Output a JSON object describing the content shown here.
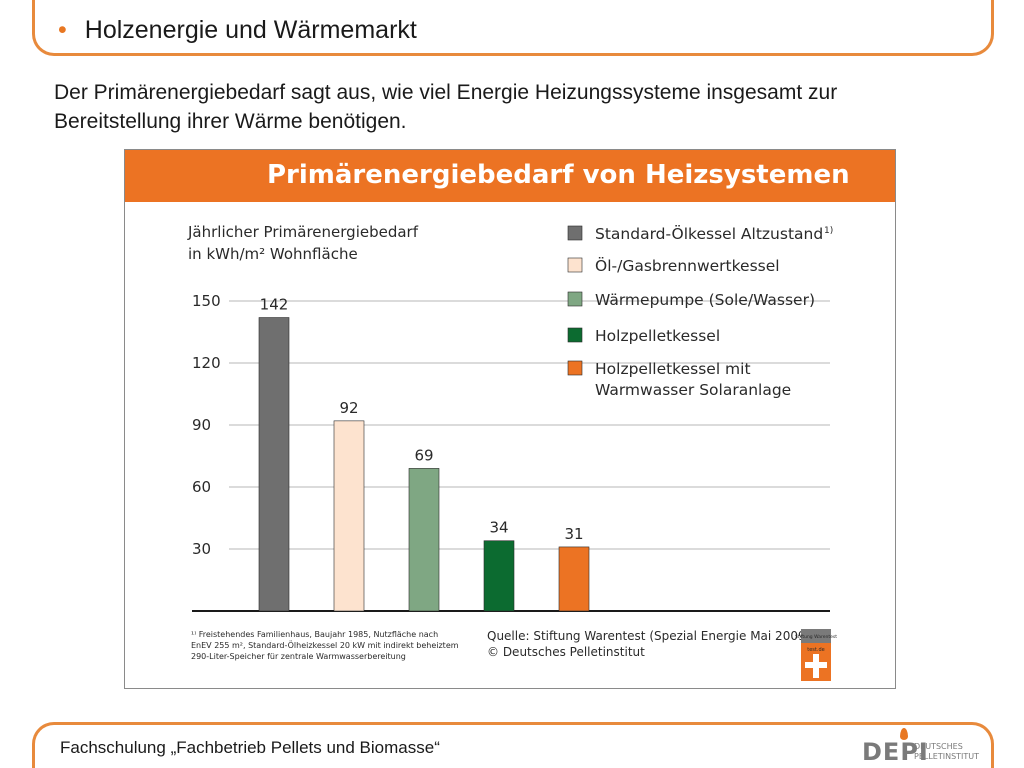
{
  "slide": {
    "bullet": "•",
    "title": "Holzenergie und Wärmemarkt",
    "intro": "Der Primärenergiebedarf sagt aus, wie viel Energie Heizungssysteme insgesamt zur Bereitstellung ihrer Wärme benötigen.",
    "footer": "Fachschulung „Fachbetrieb Pellets und Biomasse“"
  },
  "logo": {
    "main": "DEPI",
    "sub_line1": "DEUTSCHES",
    "sub_line2": "PELLETINSTITUT"
  },
  "figure": {
    "footnote": [
      "¹⁾ Freistehendes Familienhaus, Baujahr 1985, Nutzfläche nach",
      "EnEV 255 m², Standard-Ölheizkessel 20 kW mit indirekt beheiztem",
      "290-Liter-Speicher für zentrale Warmwasserbereitung"
    ],
    "source": [
      "Quelle: Stiftung Warentest (Spezial Energie Mai 2009)",
      "© Deutsches Pelletinstitut"
    ],
    "badge_top": "Stiftung Warentest",
    "badge_bottom": "test.de"
  },
  "chart_data": {
    "type": "bar",
    "title": "Primärenergiebedarf von Heizsystemen",
    "ylabel": [
      "Jährlicher Primärenergiebedarf",
      "in kWh/m² Wohnfläche"
    ],
    "ylim": [
      0,
      150
    ],
    "yticks": [
      30,
      60,
      90,
      120,
      150
    ],
    "grid": true,
    "legend_position": "top-right",
    "categories": [
      [
        "Standard-Ölkessel Altzustand"
      ],
      [
        "Öl-/Gasbrennwertkessel"
      ],
      [
        "Wärmepumpe (Sole/Wasser)"
      ],
      [
        "Holzpelletkessel"
      ],
      [
        "Holzpelletkessel mit",
        "Warmwasser Solaranlage"
      ]
    ],
    "legend_superscripts": [
      "1)",
      "",
      "",
      "",
      ""
    ],
    "values": [
      142,
      92,
      69,
      34,
      31
    ],
    "colors": [
      "#6f6f6f",
      "#fde3cf",
      "#7fa783",
      "#0c6b30",
      "#ec7323"
    ]
  }
}
